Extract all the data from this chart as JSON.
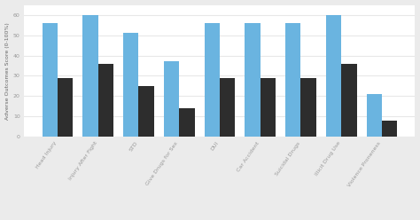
{
  "categories": [
    "Head Injury",
    "Injury After Fight",
    "STD",
    "Give Drugs for Sex",
    "DUI",
    "Car Accident",
    "Suicidal Drugs",
    "Illicit Drug Use",
    "Violence Proneness"
  ],
  "blue_values": [
    56,
    60,
    51,
    37,
    56,
    56,
    56,
    60,
    21
  ],
  "dark_values": [
    29,
    36,
    25,
    14,
    29,
    29,
    29,
    36,
    8
  ],
  "blue_color": "#6ab4e0",
  "dark_color": "#2d2d2d",
  "ylabel": "Adverse Outcomes Score (0-100%)",
  "ylim": [
    0,
    65
  ],
  "yticks": [
    0,
    10,
    20,
    30,
    40,
    50,
    60
  ],
  "fig_bg_color": "#ebebeb",
  "plot_bg_color": "#ffffff",
  "grid_color": "#e8e8e8",
  "label_fontsize": 4.5,
  "tick_fontsize": 4.5,
  "legend_fontsize": 5,
  "bar_width": 0.38
}
